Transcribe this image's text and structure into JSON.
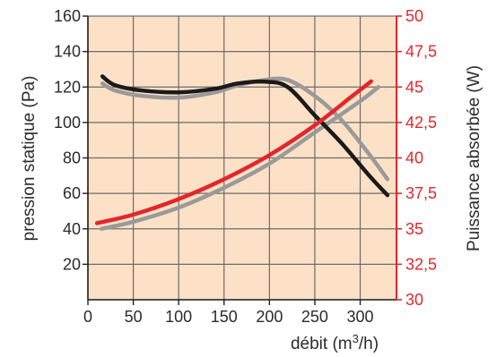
{
  "colors": {
    "plot_bg": "#fde1c6",
    "grid": "#6b6b6b",
    "pressure_black": "#1a1a1a",
    "pressure_gray": "#9a9a9a",
    "power_red": "#e3262d",
    "power_gray": "#9a9a9a",
    "right_axis": "#e3262d"
  },
  "chart_data": {
    "type": "line",
    "xlabel": "débit (m3/h)",
    "xlabel_base": "débit (m",
    "xlabel_sup": "3",
    "xlabel_end": "/h)",
    "ylabel_left": "pression statique (Pa)",
    "ylabel_right": "Puissance absorbée (W)",
    "xlim": [
      0,
      340
    ],
    "ylim_left": [
      0,
      160
    ],
    "ylim_right": [
      30,
      50
    ],
    "x_ticks": [
      "0",
      "50",
      "100",
      "150",
      "200",
      "250",
      "300"
    ],
    "x_tick_values": [
      0,
      50,
      100,
      150,
      200,
      250,
      300
    ],
    "y_left_ticks": [
      "20",
      "40",
      "60",
      "80",
      "100",
      "120",
      "140",
      "160"
    ],
    "y_left_tick_values": [
      20,
      40,
      60,
      80,
      100,
      120,
      140,
      160
    ],
    "y_right_ticks": [
      "30",
      "32,5",
      "35",
      "37,5",
      "40",
      "42,5",
      "45",
      "47,5",
      "50"
    ],
    "y_right_tick_values": [
      30,
      32.5,
      35,
      37.5,
      40,
      42.5,
      45,
      47.5,
      50
    ],
    "grid": true,
    "series": [
      {
        "axis": "left",
        "color": "pressure_black",
        "x": [
          16,
          30,
          60,
          100,
          140,
          165,
          195,
          220,
          250,
          280,
          310,
          330
        ],
        "y": [
          126,
          121,
          118,
          117,
          119,
          122,
          123,
          120,
          104,
          88,
          70,
          59
        ]
      },
      {
        "axis": "left",
        "color": "pressure_gray",
        "x": [
          16,
          30,
          60,
          100,
          140,
          165,
          195,
          220,
          250,
          280,
          310,
          330
        ],
        "y": [
          122,
          118,
          115,
          114,
          117,
          121,
          124,
          124,
          115,
          101,
          82,
          68
        ]
      },
      {
        "axis": "right",
        "color": "power_red",
        "x": [
          10,
          50,
          100,
          150,
          200,
          250,
          290,
          312
        ],
        "y": [
          35.4,
          36,
          37.1,
          38.5,
          40.2,
          42.3,
          44.3,
          45.4
        ]
      },
      {
        "axis": "right",
        "color": "power_gray",
        "x": [
          15,
          50,
          100,
          150,
          200,
          250,
          300,
          320
        ],
        "y": [
          35.0,
          35.5,
          36.5,
          37.9,
          39.6,
          41.8,
          44.0,
          45.0
        ]
      }
    ]
  }
}
